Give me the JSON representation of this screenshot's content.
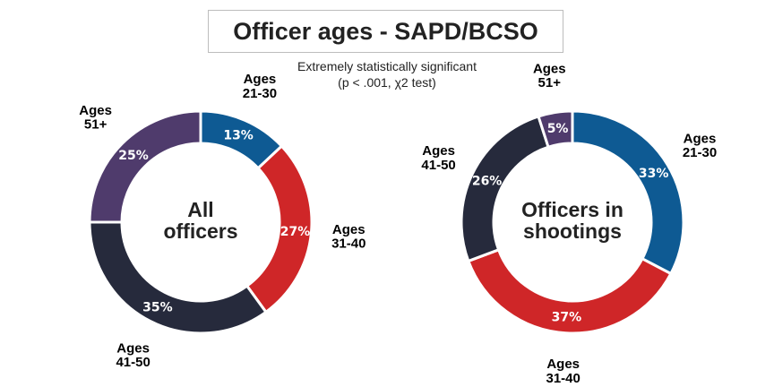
{
  "title": "Officer ages - SAPD/BCSO",
  "subtitle_line1": "Extremely statistically significant",
  "subtitle_line2": "(p < .001, χ2 test)",
  "colors": {
    "ages_21_30": "#0e5a93",
    "ages_31_40": "#cf2628",
    "ages_41_50": "#262a3c",
    "ages_51_plus": "#4f3b6c"
  },
  "chart_data": [
    {
      "type": "pie",
      "donut": true,
      "center_label": [
        "All",
        "officers"
      ],
      "categories": [
        [
          "Ages",
          "21-30"
        ],
        [
          "Ages",
          "31-40"
        ],
        [
          "Ages",
          "41-50"
        ],
        [
          "Ages",
          "51+"
        ]
      ],
      "values": [
        13,
        27,
        35,
        25
      ],
      "value_labels": [
        "13%",
        "27%",
        "35%",
        "25%"
      ],
      "color_keys": [
        "ages_21_30",
        "ages_31_40",
        "ages_41_50",
        "ages_51_plus"
      ]
    },
    {
      "type": "pie",
      "donut": true,
      "center_label": [
        "Officers in",
        "shootings"
      ],
      "categories": [
        [
          "Ages",
          "21-30"
        ],
        [
          "Ages",
          "31-40"
        ],
        [
          "Ages",
          "41-50"
        ],
        [
          "Ages",
          "51+"
        ]
      ],
      "values": [
        33,
        37,
        26,
        5
      ],
      "value_labels": [
        "33%",
        "37%",
        "26%",
        "5%"
      ],
      "color_keys": [
        "ages_21_30",
        "ages_31_40",
        "ages_41_50",
        "ages_51_plus"
      ]
    }
  ]
}
